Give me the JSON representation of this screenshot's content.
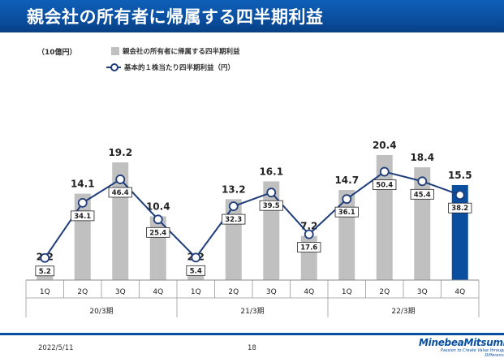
{
  "title": "親会社の所有者に帰属する四半期利益",
  "unit_label": "（10億円）",
  "footer": {
    "date": "2022/5/11",
    "page": "18"
  },
  "logo": {
    "name": "MinebeaMitsumi",
    "tagline": "Passion to Create Value through Difference"
  },
  "colors": {
    "bar": "#c0c0c0",
    "bar_highlight": "#0a4f9f",
    "line": "#1f3d7a",
    "title_band": "#0a4f9f"
  },
  "chart_data": {
    "type": "bar",
    "categories": [
      "1Q",
      "2Q",
      "3Q",
      "4Q",
      "1Q",
      "2Q",
      "3Q",
      "4Q",
      "1Q",
      "2Q",
      "3Q",
      "4Q"
    ],
    "groups": [
      {
        "label": "20/3期",
        "span": 4
      },
      {
        "label": "21/3期",
        "span": 4
      },
      {
        "label": "22/3期",
        "span": 4
      }
    ],
    "series": [
      {
        "name": "親会社の所有者に帰属する四半期利益",
        "type": "bar",
        "values": [
          2.2,
          14.1,
          19.2,
          10.4,
          2.2,
          13.2,
          16.1,
          7.2,
          14.7,
          20.4,
          18.4,
          15.5
        ],
        "labels": [
          "2.2",
          "14.1",
          "19.2",
          "10.4",
          "2.2",
          "13.2",
          "16.1",
          "7.2",
          "14.7",
          "20.4",
          "18.4",
          "15.5"
        ],
        "highlight_index": 11
      },
      {
        "name": "基本的１株当たり四半期利益（円）",
        "type": "line",
        "values": [
          5.2,
          34.1,
          46.4,
          25.4,
          5.4,
          32.3,
          39.5,
          17.6,
          36.1,
          50.4,
          45.4,
          38.2
        ],
        "labels": [
          "5.2",
          "34.1",
          "46.4",
          "25.4",
          "5.4",
          "32.3",
          "39.5",
          "17.6",
          "36.1",
          "50.4",
          "45.4",
          "38.2"
        ]
      }
    ],
    "ylim": [
      0,
      25
    ],
    "y2lim": [
      0,
      65
    ],
    "grid": false,
    "legend": "top-left"
  }
}
